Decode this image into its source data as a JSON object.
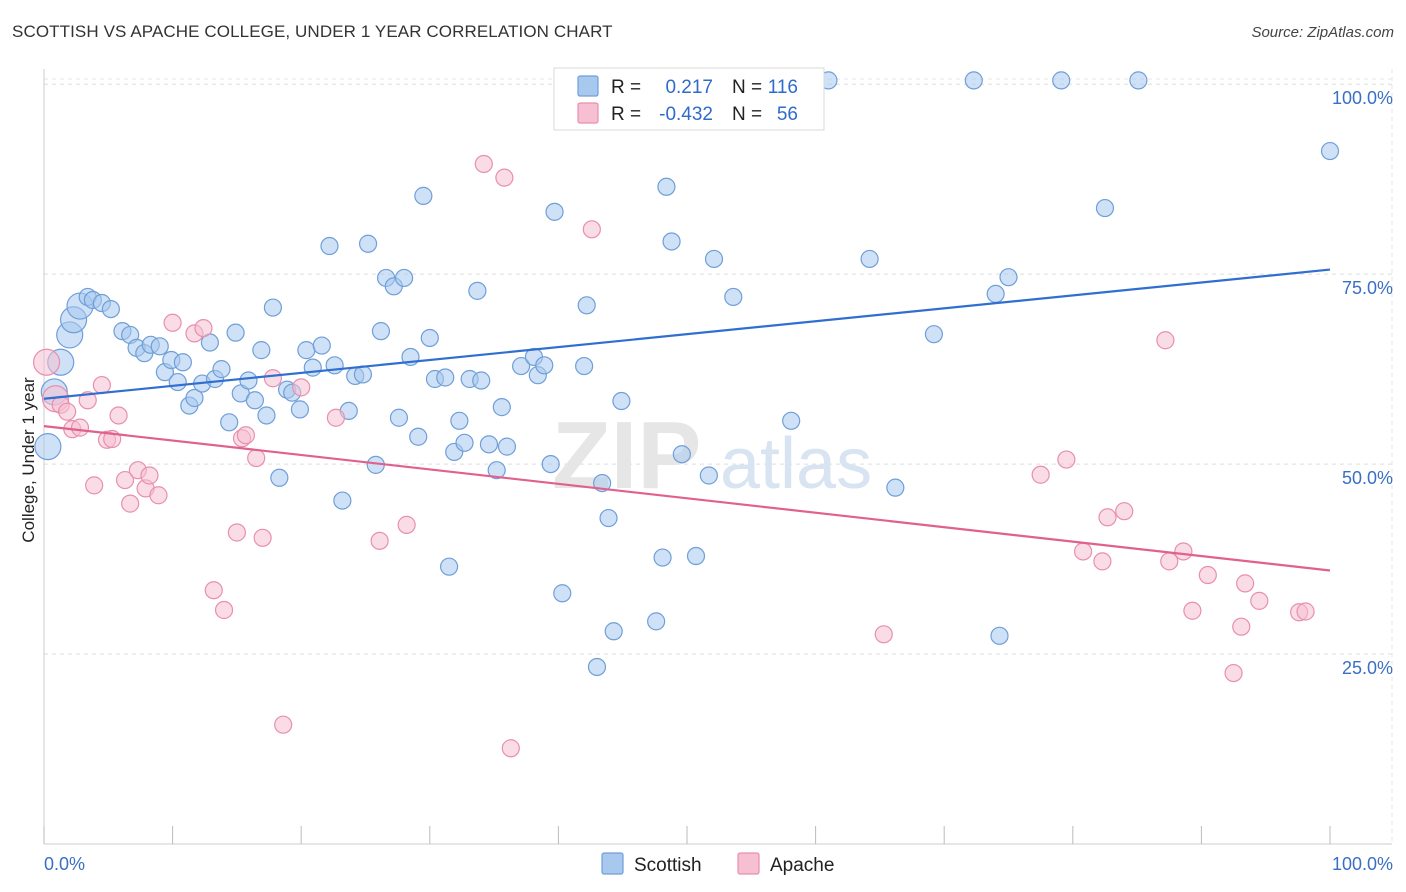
{
  "title": "SCOTTISH VS APACHE COLLEGE, UNDER 1 YEAR CORRELATION CHART",
  "source": "Source: ZipAtlas.com",
  "watermark": {
    "zip": "ZIP",
    "atlas": "atlas"
  },
  "chart_data": {
    "type": "scatter",
    "xlabel": "",
    "ylabel": "College, Under 1 year",
    "xlim": [
      0,
      100
    ],
    "ylim": [
      0,
      102
    ],
    "x_tick_labels": [
      "0.0%",
      "100.0%"
    ],
    "y_ticks": [
      25,
      50,
      75,
      100
    ],
    "y_tick_labels": [
      "25.0%",
      "50.0%",
      "75.0%",
      "100.0%"
    ],
    "grid": true,
    "legend_placement": "top-center",
    "legend": {
      "r_label": "R =",
      "n_label": "N =",
      "entries": [
        {
          "r": "0.217",
          "n": "116"
        },
        {
          "r": "-0.432",
          "n": "56"
        }
      ]
    },
    "series": [
      {
        "name": "Scottish",
        "color": "#a8c8ee",
        "stroke": "#6f9fd8",
        "line_color": "#2f6fcf",
        "trend": [
          [
            0,
            58.6
          ],
          [
            100,
            75.6
          ]
        ],
        "points": [
          [
            0.3,
            52.3
          ],
          [
            0.8,
            59.5
          ],
          [
            1.3,
            63.4
          ],
          [
            2.0,
            67.0
          ],
          [
            2.3,
            69.0
          ],
          [
            2.8,
            70.8
          ],
          [
            3.4,
            72.0
          ],
          [
            3.8,
            71.6
          ],
          [
            4.5,
            71.2
          ],
          [
            5.2,
            70.4
          ],
          [
            6.1,
            67.5
          ],
          [
            6.7,
            67.0
          ],
          [
            7.2,
            65.3
          ],
          [
            7.8,
            64.6
          ],
          [
            8.3,
            65.7
          ],
          [
            9.0,
            65.5
          ],
          [
            9.4,
            62.1
          ],
          [
            9.9,
            63.7
          ],
          [
            10.4,
            60.8
          ],
          [
            10.8,
            63.4
          ],
          [
            11.3,
            57.7
          ],
          [
            11.7,
            58.7
          ],
          [
            12.3,
            60.6
          ],
          [
            12.9,
            66.0
          ],
          [
            13.3,
            61.2
          ],
          [
            13.8,
            62.5
          ],
          [
            14.4,
            55.5
          ],
          [
            14.9,
            67.3
          ],
          [
            15.3,
            59.3
          ],
          [
            15.9,
            61.0
          ],
          [
            16.4,
            58.4
          ],
          [
            16.9,
            65.0
          ],
          [
            17.3,
            56.4
          ],
          [
            17.8,
            70.6
          ],
          [
            18.3,
            48.2
          ],
          [
            18.9,
            59.8
          ],
          [
            19.3,
            59.4
          ],
          [
            19.9,
            57.2
          ],
          [
            20.4,
            65.0
          ],
          [
            20.9,
            62.7
          ],
          [
            21.6,
            65.6
          ],
          [
            22.2,
            78.7
          ],
          [
            22.6,
            63.0
          ],
          [
            23.2,
            45.2
          ],
          [
            23.7,
            57.0
          ],
          [
            24.2,
            61.6
          ],
          [
            24.8,
            61.8
          ],
          [
            25.2,
            79.0
          ],
          [
            25.8,
            49.9
          ],
          [
            26.2,
            67.5
          ],
          [
            26.6,
            74.5
          ],
          [
            27.2,
            73.4
          ],
          [
            27.6,
            56.1
          ],
          [
            28.0,
            74.5
          ],
          [
            28.5,
            64.1
          ],
          [
            29.1,
            53.6
          ],
          [
            29.5,
            85.3
          ],
          [
            30.0,
            66.6
          ],
          [
            30.4,
            61.2
          ],
          [
            31.2,
            61.4
          ],
          [
            31.5,
            36.5
          ],
          [
            31.9,
            51.6
          ],
          [
            32.3,
            55.7
          ],
          [
            32.7,
            52.8
          ],
          [
            33.1,
            61.2
          ],
          [
            33.7,
            72.8
          ],
          [
            34.0,
            61.0
          ],
          [
            34.6,
            52.6
          ],
          [
            35.2,
            49.2
          ],
          [
            35.6,
            57.5
          ],
          [
            36.0,
            52.3
          ],
          [
            37.1,
            62.9
          ],
          [
            38.1,
            64.1
          ],
          [
            38.4,
            61.7
          ],
          [
            38.9,
            63.0
          ],
          [
            39.4,
            50.0
          ],
          [
            39.7,
            83.2
          ],
          [
            40.3,
            33.0
          ],
          [
            41.0,
            100.5
          ],
          [
            42.0,
            62.9
          ],
          [
            42.2,
            70.9
          ],
          [
            43.0,
            23.3
          ],
          [
            43.4,
            47.5
          ],
          [
            43.9,
            42.9
          ],
          [
            44.3,
            28.0
          ],
          [
            44.9,
            58.3
          ],
          [
            45.2,
            100.5
          ],
          [
            47.6,
            29.3
          ],
          [
            48.1,
            37.7
          ],
          [
            48.4,
            86.5
          ],
          [
            48.8,
            79.3
          ],
          [
            49.6,
            51.3
          ],
          [
            50.7,
            37.9
          ],
          [
            51.7,
            48.5
          ],
          [
            52.1,
            77.0
          ],
          [
            53.6,
            72.0
          ],
          [
            57.0,
            100.5
          ],
          [
            57.4,
            100.5
          ],
          [
            58.1,
            55.7
          ],
          [
            61.0,
            100.5
          ],
          [
            64.2,
            77.0
          ],
          [
            66.2,
            46.9
          ],
          [
            69.2,
            67.1
          ],
          [
            72.3,
            100.5
          ],
          [
            74.0,
            72.4
          ],
          [
            74.3,
            27.4
          ],
          [
            75.0,
            74.6
          ],
          [
            79.1,
            100.5
          ],
          [
            82.5,
            83.7
          ],
          [
            85.1,
            100.5
          ],
          [
            100.0,
            91.2
          ]
        ]
      },
      {
        "name": "Apache",
        "color": "#f6c0d2",
        "stroke": "#e88fae",
        "line_color": "#e0608e",
        "trend": [
          [
            0,
            55.0
          ],
          [
            100,
            36.0
          ]
        ],
        "points": [
          [
            0.2,
            63.4
          ],
          [
            0.9,
            58.6
          ],
          [
            1.3,
            57.8
          ],
          [
            1.8,
            56.9
          ],
          [
            2.2,
            54.6
          ],
          [
            2.8,
            54.8
          ],
          [
            3.4,
            58.4
          ],
          [
            3.9,
            47.2
          ],
          [
            4.5,
            60.4
          ],
          [
            4.9,
            53.2
          ],
          [
            5.3,
            53.3
          ],
          [
            5.8,
            56.4
          ],
          [
            6.3,
            47.9
          ],
          [
            6.7,
            44.8
          ],
          [
            7.3,
            49.2
          ],
          [
            7.9,
            46.8
          ],
          [
            8.2,
            48.5
          ],
          [
            8.9,
            45.9
          ],
          [
            10.0,
            68.6
          ],
          [
            11.7,
            67.2
          ],
          [
            12.4,
            67.9
          ],
          [
            13.2,
            33.4
          ],
          [
            14.0,
            30.8
          ],
          [
            15.0,
            41.0
          ],
          [
            15.4,
            53.4
          ],
          [
            15.7,
            53.8
          ],
          [
            16.5,
            50.8
          ],
          [
            17.0,
            40.3
          ],
          [
            17.8,
            61.3
          ],
          [
            18.6,
            15.7
          ],
          [
            20.0,
            60.1
          ],
          [
            22.7,
            56.1
          ],
          [
            26.1,
            39.9
          ],
          [
            28.2,
            42.0
          ],
          [
            34.2,
            89.5
          ],
          [
            35.8,
            87.7
          ],
          [
            36.3,
            12.6
          ],
          [
            42.6,
            80.9
          ],
          [
            65.3,
            27.6
          ],
          [
            77.5,
            48.6
          ],
          [
            79.5,
            50.6
          ],
          [
            80.8,
            38.5
          ],
          [
            82.3,
            37.2
          ],
          [
            82.7,
            43.0
          ],
          [
            84.0,
            43.8
          ],
          [
            87.2,
            66.3
          ],
          [
            87.5,
            37.2
          ],
          [
            88.6,
            38.5
          ],
          [
            89.3,
            30.7
          ],
          [
            90.5,
            35.4
          ],
          [
            92.5,
            22.5
          ],
          [
            93.1,
            28.6
          ],
          [
            93.4,
            34.3
          ],
          [
            94.5,
            32.0
          ],
          [
            97.6,
            30.5
          ],
          [
            98.1,
            30.6
          ]
        ]
      }
    ]
  }
}
